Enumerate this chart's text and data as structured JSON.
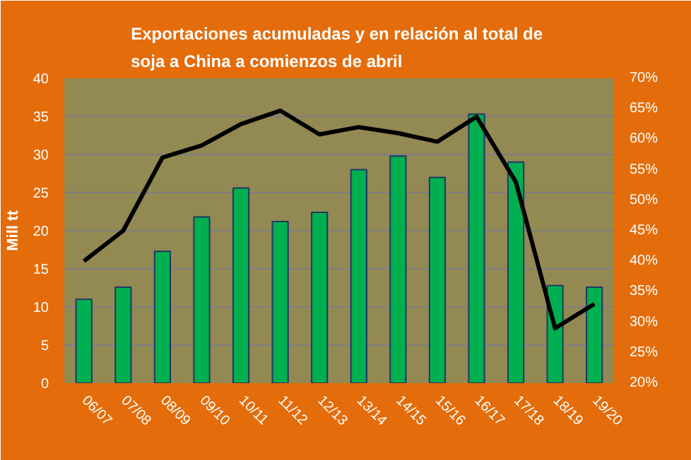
{
  "chart_data": {
    "type": "bar",
    "title": "Exportaciones acumuladas y en relación al total  de soja a China a comienzos de abril",
    "ylabel": "Mill tt",
    "categories": [
      "06/07",
      "07/08",
      "08/09",
      "09/10",
      "10/11",
      "11/12",
      "12/13",
      "13/14",
      "14/15",
      "15/16",
      "16/17",
      "17/18",
      "18/19",
      "19/20"
    ],
    "series": [
      {
        "color": "#00b050",
        "values": [
          11,
          12.6,
          17.3,
          21.8,
          25.6,
          21.2,
          22.4,
          28,
          29.8,
          27,
          35.3,
          29,
          12.8,
          12.6
        ]
      },
      {
        "type": "line",
        "axis": "y2",
        "color": "#000000",
        "values": [
          0.4,
          0.45,
          0.57,
          0.59,
          0.625,
          0.647,
          0.608,
          0.62,
          0.61,
          0.596,
          0.637,
          0.53,
          0.29,
          0.33
        ]
      }
    ],
    "ylim": [
      0,
      40
    ],
    "yticks": [
      0,
      5,
      10,
      15,
      20,
      25,
      30,
      35,
      40
    ],
    "y2lim": [
      0.2,
      0.7
    ],
    "y2ticks": [
      {
        "value": 0.2,
        "label": "20%"
      },
      {
        "value": 0.25,
        "label": "25%"
      },
      {
        "value": 0.3,
        "label": "30%"
      },
      {
        "value": 0.35,
        "label": "35%"
      },
      {
        "value": 0.4,
        "label": "40%"
      },
      {
        "value": 0.45,
        "label": "45%"
      },
      {
        "value": 0.5,
        "label": "50%"
      },
      {
        "value": 0.55,
        "label": "55%"
      },
      {
        "value": 0.6,
        "label": "60%"
      },
      {
        "value": 0.65,
        "label": "65%"
      },
      {
        "value": 0.7,
        "label": "70%"
      }
    ],
    "grid": "y"
  }
}
